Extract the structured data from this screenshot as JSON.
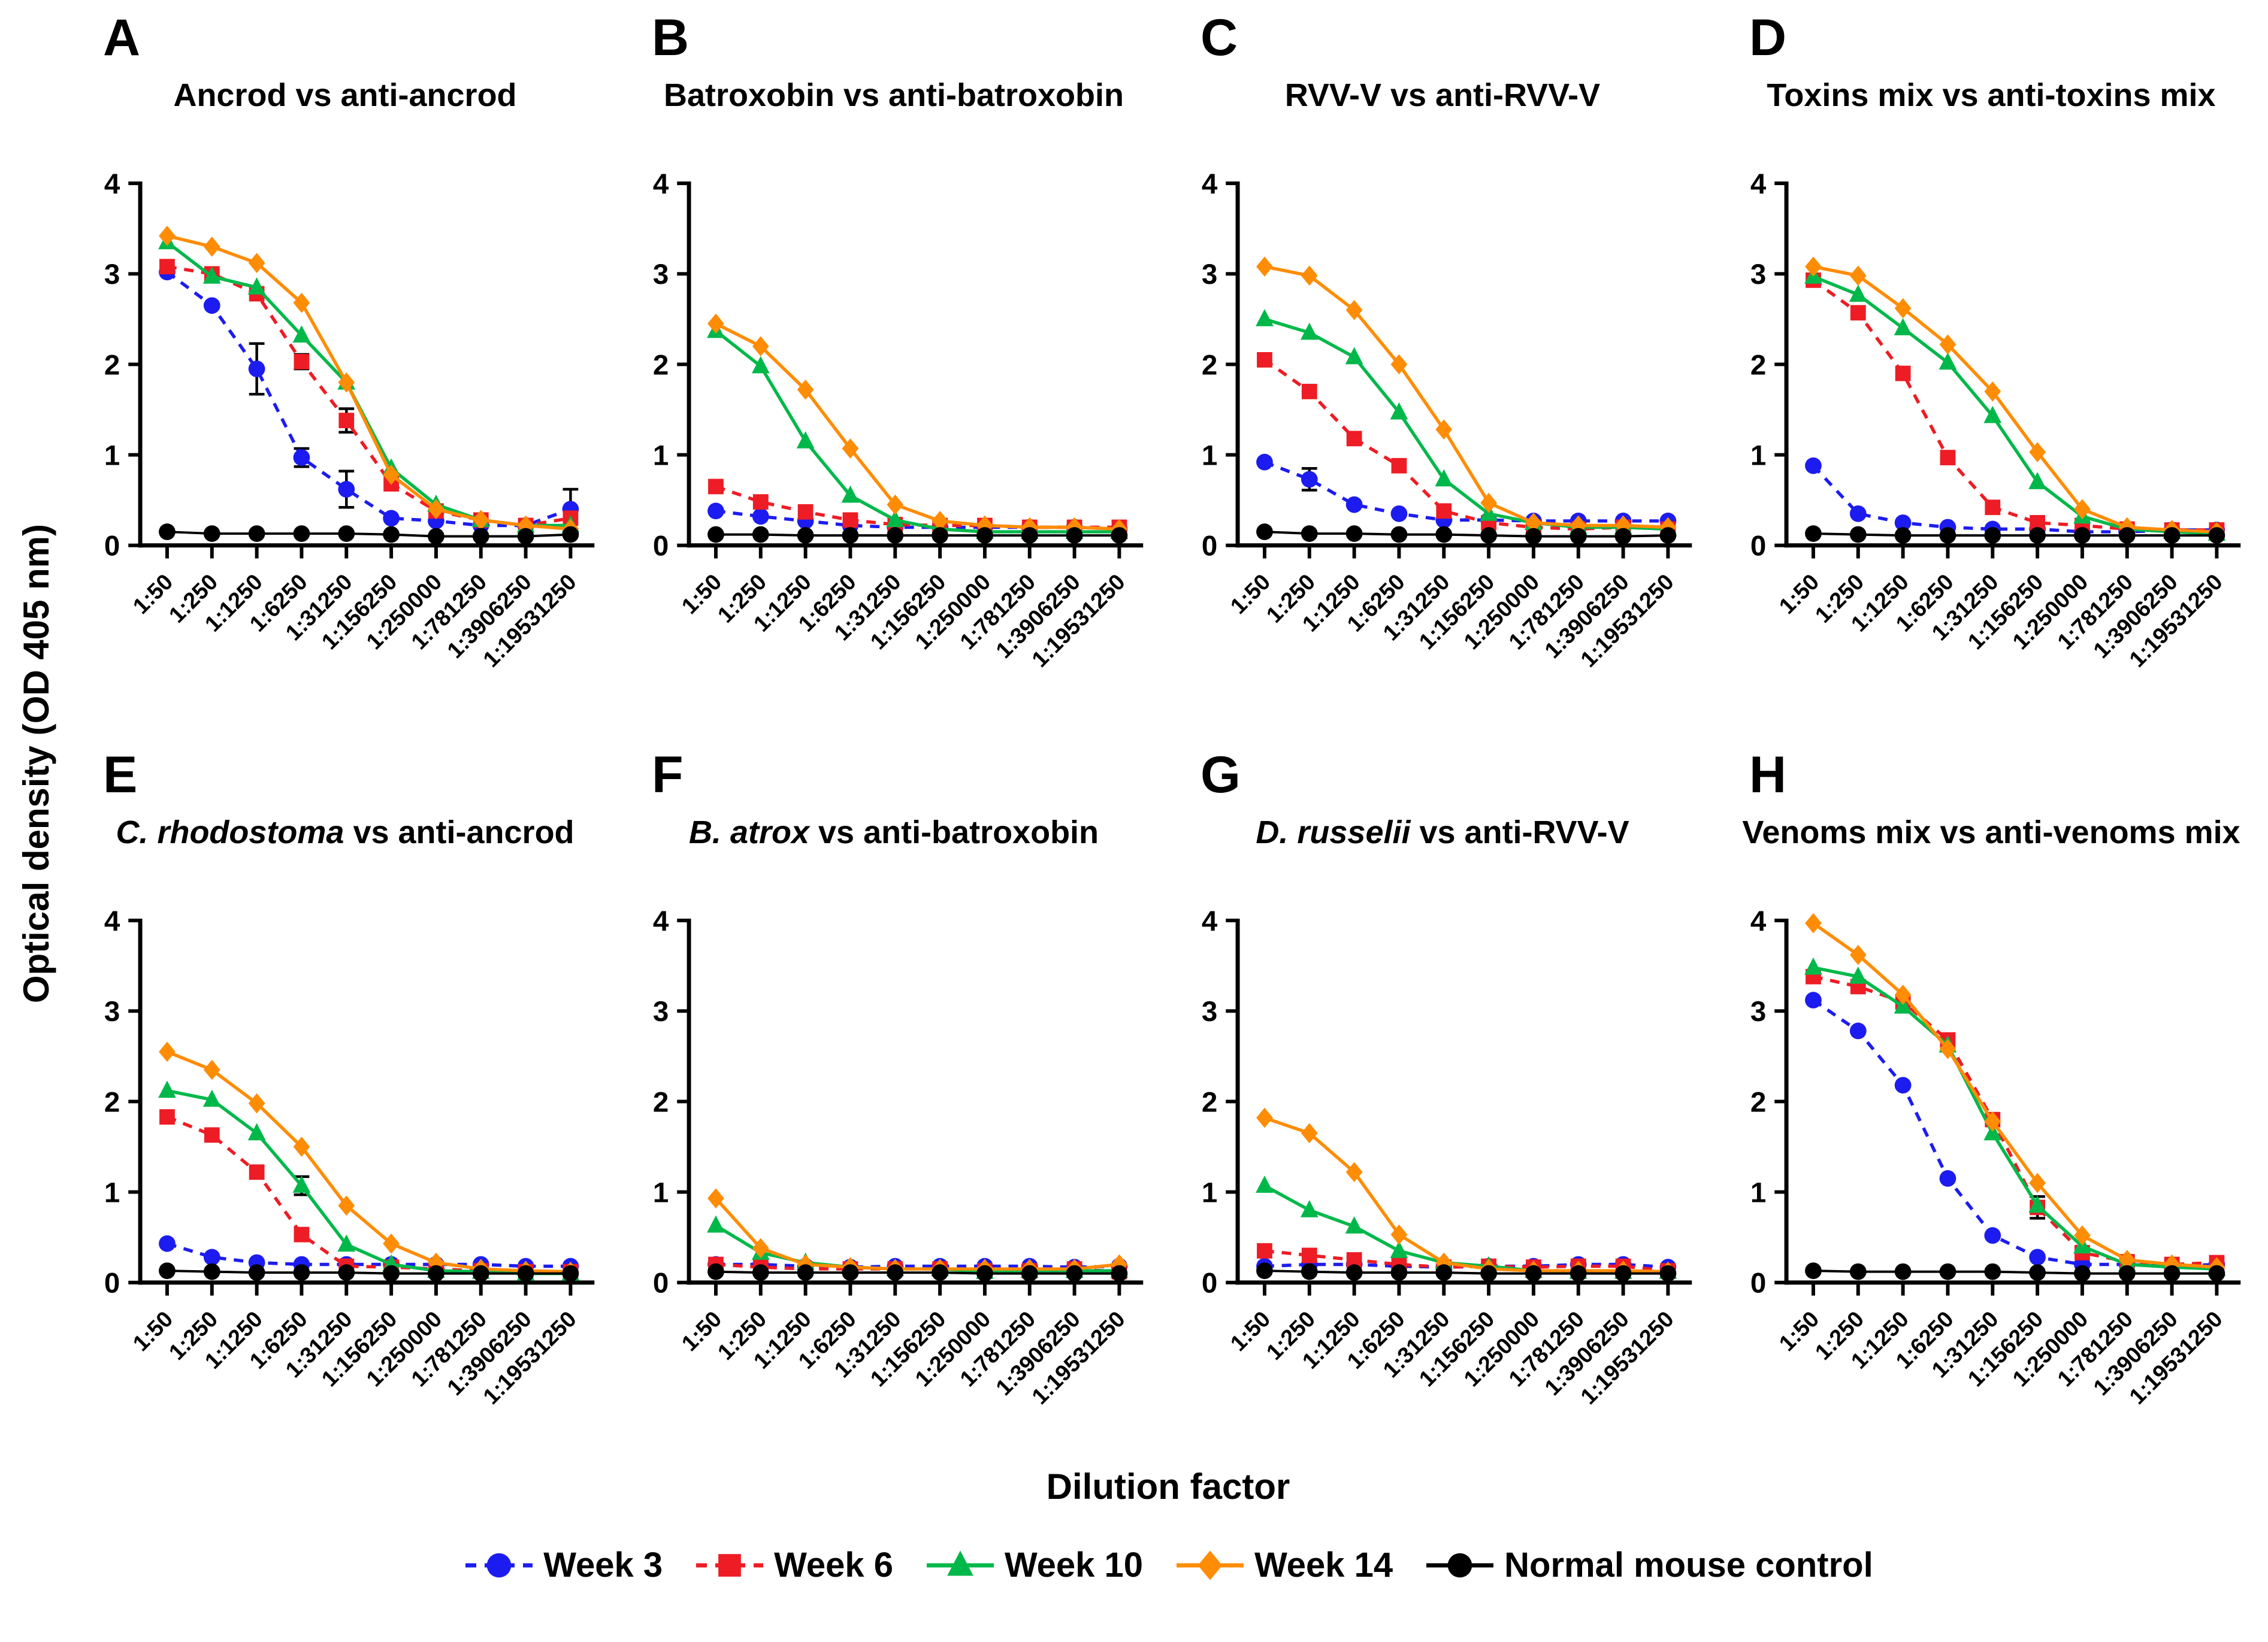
{
  "figure": {
    "ylabel": "Optical density (OD 405 nm)",
    "xlabel": "Dilution factor",
    "y_ticks": [
      0,
      1,
      2,
      3,
      4
    ],
    "ylim": [
      0,
      4
    ]
  },
  "legend": {
    "items": [
      {
        "label": "Week 3",
        "color": "#1c1cf0",
        "marker": "circle",
        "dashed": true
      },
      {
        "label": "Week 6",
        "color": "#ee1c24",
        "marker": "square",
        "dashed": true
      },
      {
        "label": "Week 10",
        "color": "#00b84a",
        "marker": "triangle",
        "dashed": false
      },
      {
        "label": "Week 14",
        "color": "#ff8c05",
        "marker": "diamond",
        "dashed": false
      },
      {
        "label": "Normal mouse control",
        "color": "#000000",
        "marker": "circle",
        "dashed": false
      }
    ]
  },
  "chart_data": [
    {
      "type": "line",
      "letter": "A",
      "title": "Ancrod vs anti-ancrod",
      "title_italic": "",
      "title_rest": "Ancrod vs anti-ancrod",
      "ylim": [
        0,
        4
      ],
      "categories": [
        "1:50",
        "1:250",
        "1:1250",
        "1:6250",
        "1:31250",
        "1:156250",
        "1:250000",
        "1:781250",
        "1:3906250",
        "1:19531250"
      ],
      "series": [
        {
          "name": "Week 3",
          "values": [
            3.02,
            2.65,
            1.95,
            0.97,
            0.62,
            0.3,
            0.27,
            0.22,
            0.22,
            0.4
          ],
          "errors": [
            0,
            0,
            0.28,
            0.1,
            0.2,
            0,
            0,
            0,
            0,
            0.22
          ]
        },
        {
          "name": "Week 6",
          "values": [
            3.08,
            3.0,
            2.78,
            2.03,
            1.38,
            0.68,
            0.38,
            0.28,
            0.22,
            0.3
          ],
          "errors": [
            0,
            0,
            0,
            0.08,
            0.13,
            0,
            0,
            0,
            0,
            0
          ]
        },
        {
          "name": "Week 10",
          "values": [
            3.35,
            2.97,
            2.85,
            2.32,
            1.8,
            0.85,
            0.45,
            0.28,
            0.22,
            0.22
          ],
          "errors": []
        },
        {
          "name": "Week 14",
          "values": [
            3.42,
            3.3,
            3.12,
            2.68,
            1.8,
            0.78,
            0.4,
            0.28,
            0.22,
            0.18
          ],
          "errors": []
        },
        {
          "name": "Normal mouse control",
          "values": [
            0.15,
            0.13,
            0.13,
            0.13,
            0.13,
            0.12,
            0.1,
            0.1,
            0.1,
            0.12
          ],
          "errors": []
        }
      ]
    },
    {
      "type": "line",
      "letter": "B",
      "title": "Batroxobin vs anti-batroxobin",
      "title_italic": "",
      "title_rest": "Batroxobin vs anti-batroxobin",
      "ylim": [
        0,
        4
      ],
      "categories": [
        "1:50",
        "1:250",
        "1:1250",
        "1:6250",
        "1:31250",
        "1:156250",
        "1:250000",
        "1:781250",
        "1:3906250",
        "1:19531250"
      ],
      "series": [
        {
          "name": "Week 3",
          "values": [
            0.38,
            0.32,
            0.27,
            0.22,
            0.2,
            0.2,
            0.2,
            0.2,
            0.2,
            0.18
          ],
          "errors": []
        },
        {
          "name": "Week 6",
          "values": [
            0.65,
            0.48,
            0.37,
            0.28,
            0.23,
            0.22,
            0.22,
            0.2,
            0.2,
            0.2
          ],
          "errors": []
        },
        {
          "name": "Week 10",
          "values": [
            2.37,
            1.98,
            1.15,
            0.55,
            0.28,
            0.18,
            0.15,
            0.15,
            0.15,
            0.15
          ],
          "errors": []
        },
        {
          "name": "Week 14",
          "values": [
            2.45,
            2.2,
            1.72,
            1.07,
            0.45,
            0.27,
            0.22,
            0.2,
            0.2,
            0.18
          ],
          "errors": []
        },
        {
          "name": "Normal mouse control",
          "values": [
            0.12,
            0.12,
            0.11,
            0.11,
            0.11,
            0.11,
            0.11,
            0.11,
            0.11,
            0.11
          ],
          "errors": []
        }
      ]
    },
    {
      "type": "line",
      "letter": "C",
      "title": "RVV-V vs anti-RVV-V",
      "title_italic": "",
      "title_rest": "RVV-V vs anti-RVV-V",
      "ylim": [
        0,
        4
      ],
      "categories": [
        "1:50",
        "1:250",
        "1:1250",
        "1:6250",
        "1:31250",
        "1:156250",
        "1:250000",
        "1:781250",
        "1:3906250",
        "1:19531250"
      ],
      "series": [
        {
          "name": "Week 3",
          "values": [
            0.92,
            0.73,
            0.45,
            0.35,
            0.28,
            0.28,
            0.27,
            0.27,
            0.27,
            0.27
          ],
          "errors": [
            0,
            0.12,
            0,
            0,
            0,
            0,
            0,
            0,
            0,
            0
          ]
        },
        {
          "name": "Week 6",
          "values": [
            2.05,
            1.7,
            1.18,
            0.88,
            0.38,
            0.25,
            0.2,
            0.18,
            0.2,
            0.18
          ],
          "errors": []
        },
        {
          "name": "Week 10",
          "values": [
            2.5,
            2.35,
            2.08,
            1.47,
            0.73,
            0.35,
            0.25,
            0.2,
            0.2,
            0.18
          ],
          "errors": []
        },
        {
          "name": "Week 14",
          "values": [
            3.08,
            2.98,
            2.6,
            2.0,
            1.28,
            0.47,
            0.25,
            0.22,
            0.22,
            0.2
          ],
          "errors": []
        },
        {
          "name": "Normal mouse control",
          "values": [
            0.15,
            0.13,
            0.13,
            0.12,
            0.12,
            0.11,
            0.1,
            0.1,
            0.1,
            0.11
          ],
          "errors": []
        }
      ]
    },
    {
      "type": "line",
      "letter": "D",
      "title": "Toxins mix vs anti-toxins mix",
      "title_italic": "",
      "title_rest": "Toxins mix vs anti-toxins mix",
      "ylim": [
        0,
        4
      ],
      "categories": [
        "1:50",
        "1:250",
        "1:1250",
        "1:6250",
        "1:31250",
        "1:156250",
        "1:250000",
        "1:781250",
        "1:3906250",
        "1:19531250"
      ],
      "series": [
        {
          "name": "Week 3",
          "values": [
            0.88,
            0.35,
            0.25,
            0.2,
            0.18,
            0.18,
            0.15,
            0.15,
            0.17,
            0.17
          ],
          "errors": []
        },
        {
          "name": "Week 6",
          "values": [
            2.93,
            2.57,
            1.9,
            0.97,
            0.42,
            0.25,
            0.22,
            0.18,
            0.17,
            0.17
          ],
          "errors": []
        },
        {
          "name": "Week 10",
          "values": [
            2.97,
            2.77,
            2.4,
            2.02,
            1.43,
            0.7,
            0.32,
            0.18,
            0.15,
            0.13
          ],
          "errors": []
        },
        {
          "name": "Week 14",
          "values": [
            3.08,
            2.98,
            2.62,
            2.22,
            1.7,
            1.03,
            0.4,
            0.2,
            0.17,
            0.15
          ],
          "errors": []
        },
        {
          "name": "Normal mouse control",
          "values": [
            0.13,
            0.12,
            0.11,
            0.11,
            0.11,
            0.11,
            0.11,
            0.11,
            0.11,
            0.11
          ],
          "errors": []
        }
      ]
    },
    {
      "type": "line",
      "letter": "E",
      "title": "C. rhodostoma vs anti-ancrod",
      "title_italic": "C. rhodostoma",
      "title_rest": " vs anti-ancrod",
      "ylim": [
        0,
        4
      ],
      "categories": [
        "1:50",
        "1:250",
        "1:1250",
        "1:6250",
        "1:31250",
        "1:156250",
        "1:250000",
        "1:781250",
        "1:3906250",
        "1:19531250"
      ],
      "series": [
        {
          "name": "Week 3",
          "values": [
            0.43,
            0.28,
            0.22,
            0.2,
            0.2,
            0.2,
            0.2,
            0.2,
            0.18,
            0.18
          ],
          "errors": []
        },
        {
          "name": "Week 6",
          "values": [
            1.83,
            1.63,
            1.22,
            0.53,
            0.18,
            0.17,
            0.15,
            0.13,
            0.12,
            0.12
          ],
          "errors": []
        },
        {
          "name": "Week 10",
          "values": [
            2.12,
            2.02,
            1.65,
            1.07,
            0.42,
            0.2,
            0.13,
            0.12,
            0.1,
            0.1
          ],
          "errors": [
            0,
            0,
            0,
            0.1,
            0,
            0,
            0,
            0,
            0,
            0
          ]
        },
        {
          "name": "Week 14",
          "values": [
            2.55,
            2.35,
            1.98,
            1.5,
            0.85,
            0.43,
            0.22,
            0.15,
            0.13,
            0.12
          ],
          "errors": []
        },
        {
          "name": "Normal mouse control",
          "values": [
            0.13,
            0.12,
            0.11,
            0.11,
            0.11,
            0.1,
            0.1,
            0.1,
            0.1,
            0.1
          ],
          "errors": []
        }
      ]
    },
    {
      "type": "line",
      "letter": "F",
      "title": "B. atrox vs anti-batroxobin",
      "title_italic": "B. atrox",
      "title_rest": " vs anti-batroxobin",
      "ylim": [
        0,
        4
      ],
      "categories": [
        "1:50",
        "1:250",
        "1:1250",
        "1:6250",
        "1:31250",
        "1:156250",
        "1:250000",
        "1:781250",
        "1:3906250",
        "1:19531250"
      ],
      "series": [
        {
          "name": "Week 3",
          "values": [
            0.2,
            0.2,
            0.18,
            0.17,
            0.18,
            0.18,
            0.18,
            0.18,
            0.17,
            0.18
          ],
          "errors": []
        },
        {
          "name": "Week 6",
          "values": [
            0.2,
            0.17,
            0.15,
            0.15,
            0.15,
            0.15,
            0.13,
            0.13,
            0.15,
            0.12
          ],
          "errors": []
        },
        {
          "name": "Week 10",
          "values": [
            0.63,
            0.33,
            0.22,
            0.17,
            0.15,
            0.15,
            0.12,
            0.13,
            0.13,
            0.13
          ],
          "errors": []
        },
        {
          "name": "Week 14",
          "values": [
            0.93,
            0.38,
            0.2,
            0.17,
            0.15,
            0.15,
            0.15,
            0.15,
            0.15,
            0.2
          ],
          "errors": []
        },
        {
          "name": "Normal mouse control",
          "values": [
            0.12,
            0.11,
            0.11,
            0.11,
            0.11,
            0.11,
            0.1,
            0.1,
            0.1,
            0.1
          ],
          "errors": []
        }
      ]
    },
    {
      "type": "line",
      "letter": "G",
      "title": "D. russelii vs anti-RVV-V",
      "title_italic": "D. russelii",
      "title_rest": " vs anti-RVV-V",
      "ylim": [
        0,
        4
      ],
      "categories": [
        "1:50",
        "1:250",
        "1:1250",
        "1:6250",
        "1:31250",
        "1:156250",
        "1:250000",
        "1:781250",
        "1:3906250",
        "1:19531250"
      ],
      "series": [
        {
          "name": "Week 3",
          "values": [
            0.18,
            0.2,
            0.2,
            0.18,
            0.17,
            0.18,
            0.18,
            0.2,
            0.2,
            0.17
          ],
          "errors": []
        },
        {
          "name": "Week 6",
          "values": [
            0.35,
            0.3,
            0.25,
            0.2,
            0.17,
            0.18,
            0.17,
            0.18,
            0.18,
            0.13
          ],
          "errors": []
        },
        {
          "name": "Week 10",
          "values": [
            1.07,
            0.8,
            0.62,
            0.35,
            0.22,
            0.18,
            0.13,
            0.12,
            0.12,
            0.12
          ],
          "errors": []
        },
        {
          "name": "Week 14",
          "values": [
            1.82,
            1.65,
            1.22,
            0.53,
            0.22,
            0.15,
            0.13,
            0.13,
            0.13,
            0.12
          ],
          "errors": []
        },
        {
          "name": "Normal mouse control",
          "values": [
            0.13,
            0.12,
            0.11,
            0.11,
            0.11,
            0.1,
            0.1,
            0.1,
            0.1,
            0.1
          ],
          "errors": []
        }
      ]
    },
    {
      "type": "line",
      "letter": "H",
      "title": "Venoms mix vs anti-venoms mix",
      "title_italic": "",
      "title_rest": "Venoms mix vs anti-venoms mix",
      "ylim": [
        0,
        4
      ],
      "categories": [
        "1:50",
        "1:250",
        "1:1250",
        "1:6250",
        "1:31250",
        "1:156250",
        "1:250000",
        "1:781250",
        "1:3906250",
        "1:19531250"
      ],
      "series": [
        {
          "name": "Week 3",
          "values": [
            3.12,
            2.78,
            2.18,
            1.15,
            0.52,
            0.28,
            0.2,
            0.2,
            0.18,
            0.2
          ],
          "errors": []
        },
        {
          "name": "Week 6",
          "values": [
            3.38,
            3.27,
            3.1,
            2.68,
            1.8,
            0.83,
            0.33,
            0.23,
            0.2,
            0.22
          ],
          "errors": [
            0,
            0,
            0,
            0,
            0,
            0.12,
            0,
            0,
            0,
            0
          ]
        },
        {
          "name": "Week 10",
          "values": [
            3.48,
            3.38,
            3.05,
            2.62,
            1.65,
            0.85,
            0.4,
            0.2,
            0.17,
            0.15
          ],
          "errors": []
        },
        {
          "name": "Week 14",
          "values": [
            3.97,
            3.62,
            3.18,
            2.58,
            1.78,
            1.1,
            0.52,
            0.25,
            0.2,
            0.17
          ],
          "errors": []
        },
        {
          "name": "Normal mouse control",
          "values": [
            0.13,
            0.12,
            0.12,
            0.12,
            0.12,
            0.11,
            0.1,
            0.1,
            0.1,
            0.1
          ],
          "errors": []
        }
      ]
    }
  ]
}
